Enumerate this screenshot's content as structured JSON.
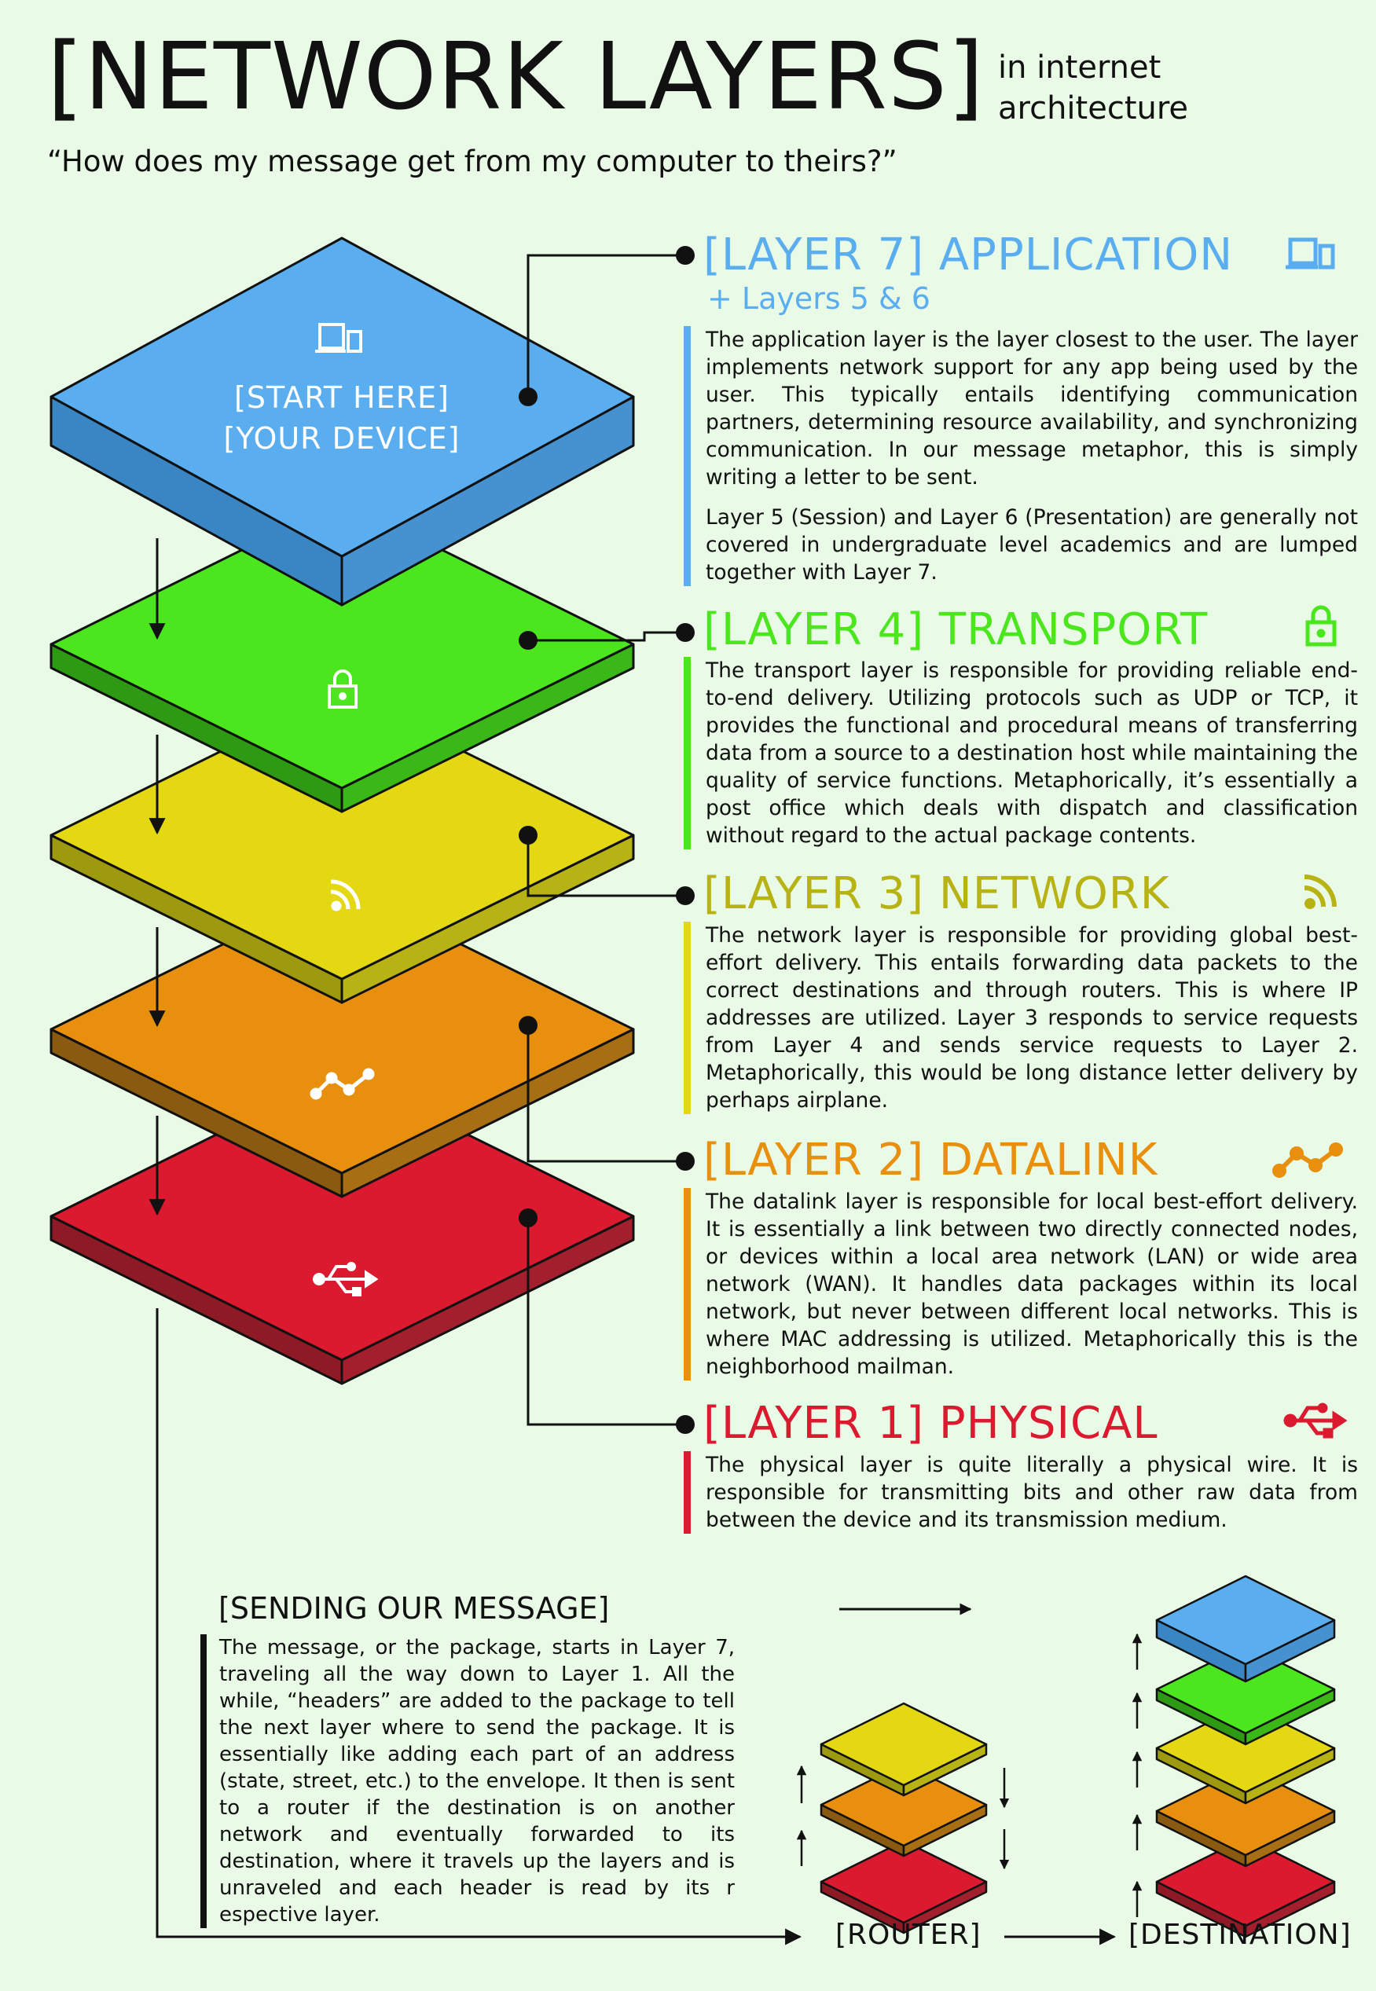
{
  "header": {
    "title": "[NETWORK LAYERS]",
    "subtitle_line1": "in internet",
    "subtitle_line2": "architecture",
    "tagline": "“How does my message get from my computer to theirs?”"
  },
  "stack": {
    "start_label_line1": "[START HERE]",
    "start_label_line2": "[YOUR DEVICE]"
  },
  "colors": {
    "application": "#5aaef0",
    "transport": "#4ce61e",
    "network": "#e3d812",
    "datalink": "#e8900e",
    "physical": "#dc1a2f"
  },
  "layers": {
    "application": {
      "title": "[LAYER 7] APPLICATION",
      "subtitle": "+ Layers 5 & 6",
      "icon": "device-icon",
      "desc1": "The application layer is the layer closest to the user. The layer implements network support for any app being used by the user. This typically entails identifying communication partners, determining resource availability, and synchronizing communication. In our message metaphor, this is simply writing a letter to be sent.",
      "desc2": "Layer 5 (Session) and Layer 6 (Presentation) are generally not covered in undergraduate level academics and are lumped together with Layer 7."
    },
    "transport": {
      "title": "[LAYER 4] TRANSPORT",
      "icon": "lock-icon",
      "desc": "The transport layer is responsible for providing reliable end-to-end delivery. Utilizing protocols such as UDP or TCP, it provides the functional and procedural means of transferring data from a source to a destination host while maintaining the quality of service functions. Metaphorically, it’s essentially a post office which deals with dispatch and classification without regard to the actual package contents."
    },
    "network": {
      "title": "[LAYER 3] NETWORK",
      "icon": "rss-icon",
      "desc": "The network layer is responsible for providing global best-effort delivery. This entails forwarding data packets to the correct destinations and through routers. This is where IP addresses are utilized. Layer 3 responds to service requests from Layer 4 and sends service requests to Layer 2. Metaphorically, this would be long distance letter delivery by perhaps airplane."
    },
    "datalink": {
      "title": "[LAYER 2] DATALINK",
      "icon": "trend-icon",
      "desc": "The datalink layer is responsible for local best-effort delivery. It is essentially a link between two directly connected nodes, or devices within a local area network (LAN) or wide area network (WAN). It handles data packages within its local network, but never between different local networks. This is where MAC addressing is utilized. Metaphorically this is the neighborhood mailman."
    },
    "physical": {
      "title": "[LAYER 1] PHYSICAL",
      "icon": "usb-icon",
      "desc": "The physical layer is quite literally a physical wire. It is responsible for transmitting bits and other raw data from between the device and its transmission medium."
    }
  },
  "sending": {
    "title": "[SENDING OUR MESSAGE]",
    "body": "The message, or the package, starts in Layer 7, traveling all the way down to Layer 1. All the while, “headers” are added to the package to tell the next layer where to send the package. It is essentially like adding each part of an address (state, street, etc.) to the envelope. It then is sent to a router if the destination is on another network and eventually forwarded to its destination, where it travels up the layers and is unraveled and each header is read by its r espective layer."
  },
  "bottom": {
    "router_label": "[ROUTER]",
    "destination_label": "[DESTINATION]"
  }
}
